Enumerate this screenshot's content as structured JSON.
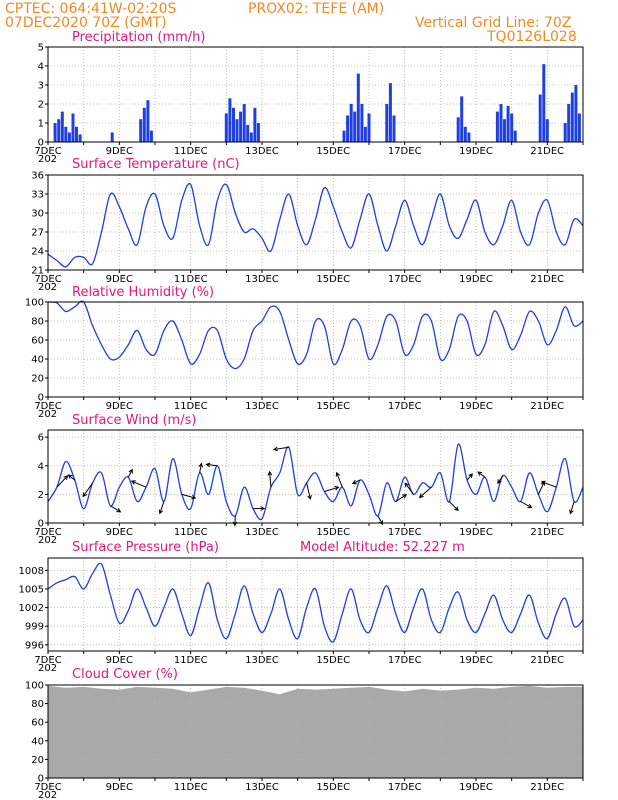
{
  "header": {
    "line1_left": "CPTEC:   064:41W-02:20S",
    "line1_right": "PROX02: TEFE (AM)",
    "line2_left": "07DEC2020 70Z (GMT)",
    "line2_right": "Vertical Grid Line: 70Z",
    "line3_right": "TQ0126L028"
  },
  "x_tick_labels": [
    "7DEC",
    "9DEC",
    "11DEC",
    "13DEC",
    "15DEC",
    "17DEC",
    "19DEC",
    "21DEC"
  ],
  "x_sub_label": "202",
  "colors": {
    "series": "#1f3fe0",
    "precip_bar": "#1f3fe0",
    "cloud": "#a9a9a9",
    "title": "#e0197a",
    "header": "#f08a24",
    "grid": "#b0b0b0"
  },
  "chart_data": [
    {
      "type": "bar",
      "title": "Precipitation (mm/h)",
      "ylim": [
        0,
        5
      ],
      "yticks": [
        0,
        1,
        2,
        3,
        4,
        5
      ],
      "x_range_days": [
        7,
        22
      ],
      "x": [
        7.2,
        7.3,
        7.4,
        7.5,
        7.6,
        7.7,
        7.8,
        7.9,
        8.8,
        9.6,
        9.7,
        9.8,
        9.9,
        12.0,
        12.1,
        12.2,
        12.3,
        12.4,
        12.5,
        12.6,
        12.7,
        12.8,
        12.9,
        15.3,
        15.4,
        15.5,
        15.6,
        15.7,
        15.8,
        15.9,
        16.0,
        16.5,
        16.6,
        16.7,
        18.5,
        18.6,
        18.7,
        18.8,
        19.6,
        19.7,
        19.8,
        19.9,
        20.0,
        20.1,
        20.8,
        20.9,
        21.0,
        21.5,
        21.6,
        21.7,
        21.8,
        21.9
      ],
      "values": [
        1.0,
        1.2,
        1.6,
        0.8,
        0.5,
        1.5,
        0.8,
        0.4,
        0.5,
        1.2,
        1.8,
        2.2,
        0.6,
        1.5,
        2.3,
        1.8,
        1.2,
        1.6,
        2.0,
        0.9,
        0.5,
        1.8,
        1.0,
        0.6,
        1.4,
        2.0,
        1.6,
        3.6,
        2.0,
        0.8,
        1.5,
        2.0,
        3.1,
        1.4,
        1.3,
        2.4,
        0.8,
        0.5,
        1.6,
        2.0,
        1.2,
        1.9,
        1.5,
        0.6,
        2.5,
        4.1,
        1.2,
        1.0,
        2.0,
        2.6,
        3.0,
        1.5
      ]
    },
    {
      "type": "line",
      "title": "Surface Temperature (nC)",
      "ylim": [
        21,
        36
      ],
      "yticks": [
        21,
        24,
        27,
        30,
        33,
        36
      ],
      "x_range_days": [
        7,
        22
      ],
      "x": [
        7.0,
        7.25,
        7.5,
        7.75,
        8.0,
        8.25,
        8.5,
        8.75,
        9.0,
        9.25,
        9.5,
        9.75,
        10.0,
        10.25,
        10.5,
        10.75,
        11.0,
        11.25,
        11.5,
        11.75,
        12.0,
        12.25,
        12.5,
        12.75,
        13.0,
        13.25,
        13.5,
        13.75,
        14.0,
        14.25,
        14.5,
        14.75,
        15.0,
        15.25,
        15.5,
        15.75,
        16.0,
        16.25,
        16.5,
        16.75,
        17.0,
        17.25,
        17.5,
        17.75,
        18.0,
        18.25,
        18.5,
        18.75,
        19.0,
        19.25,
        19.5,
        19.75,
        20.0,
        20.25,
        20.5,
        20.75,
        21.0,
        21.25,
        21.5,
        21.75,
        22.0
      ],
      "values": [
        23.5,
        22.5,
        21.5,
        23,
        23,
        22,
        27,
        33,
        31,
        27.5,
        25,
        31,
        33,
        28,
        26,
        32,
        34.5,
        28,
        25,
        32,
        34.5,
        30,
        27,
        27.5,
        26,
        24,
        29,
        33,
        28,
        25,
        29,
        34,
        31,
        27,
        24.5,
        29,
        33,
        28,
        24,
        28,
        32,
        28,
        25,
        29,
        33,
        28,
        26,
        29,
        32,
        27,
        25,
        28,
        32,
        27,
        25,
        30,
        32,
        27,
        25,
        29,
        28
      ]
    },
    {
      "type": "line",
      "title": "Relative Humidity (%)",
      "ylim": [
        0,
        100
      ],
      "yticks": [
        0,
        20,
        40,
        60,
        80,
        100
      ],
      "x_range_days": [
        7,
        22
      ],
      "x": [
        7.0,
        7.25,
        7.5,
        7.75,
        8.0,
        8.25,
        8.5,
        8.75,
        9.0,
        9.25,
        9.5,
        9.75,
        10.0,
        10.25,
        10.5,
        10.75,
        11.0,
        11.25,
        11.5,
        11.75,
        12.0,
        12.25,
        12.5,
        12.75,
        13.0,
        13.25,
        13.5,
        13.75,
        14.0,
        14.25,
        14.5,
        14.75,
        15.0,
        15.25,
        15.5,
        15.75,
        16.0,
        16.25,
        16.5,
        16.75,
        17.0,
        17.25,
        17.5,
        17.75,
        18.0,
        18.25,
        18.5,
        18.75,
        19.0,
        19.25,
        19.5,
        19.75,
        20.0,
        20.25,
        20.5,
        20.75,
        21.0,
        21.25,
        21.5,
        21.75,
        22.0
      ],
      "values": [
        100,
        99,
        90,
        95,
        100,
        75,
        55,
        40,
        42,
        55,
        70,
        50,
        45,
        70,
        80,
        60,
        35,
        45,
        70,
        70,
        40,
        30,
        40,
        70,
        80,
        95,
        90,
        60,
        35,
        45,
        80,
        75,
        35,
        50,
        80,
        75,
        40,
        55,
        85,
        80,
        45,
        55,
        85,
        80,
        40,
        50,
        85,
        80,
        45,
        55,
        90,
        75,
        50,
        65,
        90,
        80,
        55,
        70,
        95,
        75,
        80
      ]
    },
    {
      "type": "line",
      "title": "Surface Wind (m/s)",
      "ylim": [
        0,
        6.5
      ],
      "yticks": [
        0,
        2,
        4,
        6
      ],
      "x_range_days": [
        7,
        22
      ],
      "x": [
        7.0,
        7.25,
        7.5,
        7.75,
        8.0,
        8.25,
        8.5,
        8.75,
        9.0,
        9.25,
        9.5,
        9.75,
        10.0,
        10.25,
        10.5,
        10.75,
        11.0,
        11.25,
        11.5,
        11.75,
        12.0,
        12.25,
        12.5,
        12.75,
        13.0,
        13.25,
        13.5,
        13.75,
        14.0,
        14.25,
        14.5,
        14.75,
        15.0,
        15.25,
        15.5,
        15.75,
        16.0,
        16.25,
        16.5,
        16.75,
        17.0,
        17.25,
        17.5,
        17.75,
        18.0,
        18.25,
        18.5,
        18.75,
        19.0,
        19.25,
        19.5,
        19.75,
        20.0,
        20.25,
        20.5,
        20.75,
        21.0,
        21.25,
        21.5,
        21.75,
        22.0
      ],
      "values": [
        1.5,
        2.5,
        4.3,
        3.0,
        1.0,
        2.8,
        3.5,
        1.2,
        2.5,
        3.2,
        1.5,
        2.5,
        3.8,
        1.5,
        4.5,
        2.0,
        1.0,
        3.5,
        2.0,
        4.0,
        1.5,
        0.5,
        2.5,
        1.0,
        0.3,
        2.5,
        3.5,
        5.3,
        2.0,
        2.8,
        3.5,
        2.2,
        1.5,
        2.5,
        1.2,
        3.0,
        2.0,
        0.5,
        2.8,
        1.5,
        3.2,
        2.0,
        2.8,
        2.5,
        3.5,
        1.5,
        5.5,
        3.0,
        2.0,
        3.2,
        1.5,
        3.3,
        2.5,
        1.5,
        3.5,
        2.0,
        0.8,
        2.5,
        4.5,
        1.5,
        2.5
      ]
    },
    {
      "type": "line",
      "title": "Surface Pressure (hPa)",
      "subtitle": "Model Altitude: 52.227  m",
      "ylim": [
        995,
        1010
      ],
      "yticks": [
        996,
        999,
        1002,
        1005,
        1008
      ],
      "x_range_days": [
        7,
        22
      ],
      "x": [
        7.0,
        7.25,
        7.5,
        7.75,
        8.0,
        8.25,
        8.5,
        8.75,
        9.0,
        9.25,
        9.5,
        9.75,
        10.0,
        10.25,
        10.5,
        10.75,
        11.0,
        11.25,
        11.5,
        11.75,
        12.0,
        12.25,
        12.5,
        12.75,
        13.0,
        13.25,
        13.5,
        13.75,
        14.0,
        14.25,
        14.5,
        14.75,
        15.0,
        15.25,
        15.5,
        15.75,
        16.0,
        16.25,
        16.5,
        16.75,
        17.0,
        17.25,
        17.5,
        17.75,
        18.0,
        18.25,
        18.5,
        18.75,
        19.0,
        19.25,
        19.5,
        19.75,
        20.0,
        20.25,
        20.5,
        20.75,
        21.0,
        21.25,
        21.5,
        21.75,
        22.0
      ],
      "values": [
        1005,
        1006,
        1006.5,
        1007,
        1005,
        1007.5,
        1009,
        1004,
        999.5,
        1001.5,
        1005,
        1002,
        999,
        1002,
        1005,
        1001,
        997.5,
        1002,
        1006,
        1000,
        997,
        1001,
        1005.5,
        1001,
        998,
        1001,
        1005,
        1000,
        997,
        1002,
        1005,
        999,
        996.5,
        1001,
        1005,
        1000,
        998,
        1002,
        1005.5,
        1001,
        998,
        1002,
        1005,
        1000,
        998,
        1002,
        1004.5,
        1000,
        998,
        1001,
        1004,
        1000,
        998,
        1001,
        1004,
        999.5,
        997,
        1001,
        1003.5,
        999,
        1000
      ]
    },
    {
      "type": "area",
      "title": "Cloud Cover (%)",
      "ylim": [
        0,
        100
      ],
      "yticks": [
        0,
        20,
        40,
        60,
        80,
        100
      ],
      "x_range_days": [
        7,
        22
      ],
      "x": [
        7.0,
        7.5,
        8.0,
        8.5,
        9.0,
        9.5,
        10.0,
        10.5,
        11.0,
        11.5,
        12.0,
        12.5,
        13.0,
        13.5,
        14.0,
        14.5,
        15.0,
        15.5,
        16.0,
        16.5,
        17.0,
        17.5,
        18.0,
        18.5,
        19.0,
        19.5,
        20.0,
        20.5,
        21.0,
        21.5,
        22.0
      ],
      "values": [
        99,
        97,
        98,
        96,
        95,
        98,
        97,
        96,
        92,
        95,
        98,
        97,
        94,
        90,
        96,
        95,
        96,
        97,
        98,
        95,
        93,
        96,
        94,
        95,
        97,
        96,
        98,
        99,
        97,
        98,
        98
      ]
    }
  ]
}
